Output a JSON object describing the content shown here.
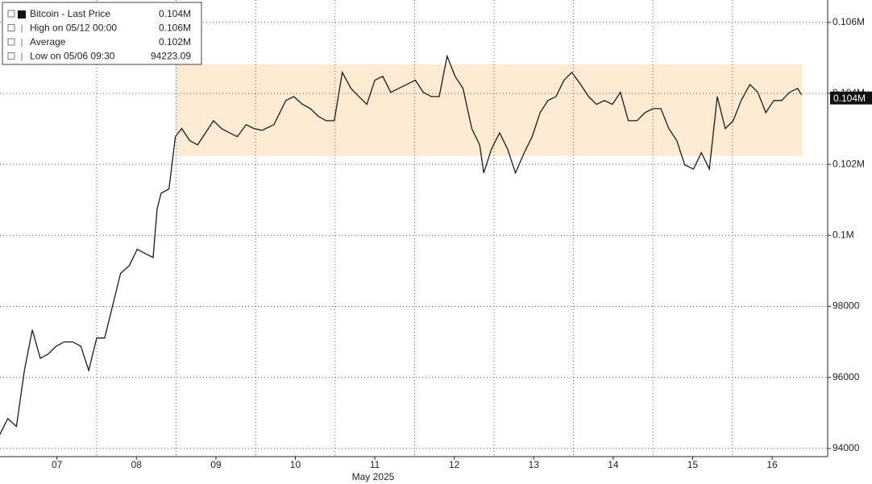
{
  "chart_data": {
    "type": "line",
    "x_axis_label": "May 2025",
    "xlim": [
      6.783,
      17.199
    ],
    "xticks": [
      {
        "value": 7.5,
        "label": "07"
      },
      {
        "value": 8.5,
        "label": "08"
      },
      {
        "value": 9.5,
        "label": "09"
      },
      {
        "value": 10.5,
        "label": "10"
      },
      {
        "value": 11.5,
        "label": "11"
      },
      {
        "value": 12.5,
        "label": "12"
      },
      {
        "value": 13.5,
        "label": "13"
      },
      {
        "value": 14.5,
        "label": "14"
      },
      {
        "value": 15.5,
        "label": "15"
      },
      {
        "value": 16.5,
        "label": "16"
      }
    ],
    "xgrid_lines": [
      8,
      9,
      10,
      11,
      12,
      13,
      14,
      15,
      16
    ],
    "ylim": [
      93770,
      106630
    ],
    "yticks": [
      94000,
      96000,
      98000,
      {
        "value": 100000,
        "label": "0.1M"
      },
      {
        "value": 102000,
        "label": "0.102M"
      },
      {
        "value": 104000,
        "label": "0.104M"
      },
      {
        "value": 106000,
        "label": "0.106M"
      }
    ],
    "grid": true,
    "band": {
      "x": [
        8.99,
        16.88
      ],
      "y": [
        102240,
        104820
      ],
      "color": "#fdebd3"
    },
    "last_price": {
      "value": 103870,
      "label": "0.104M"
    },
    "legend_entries": [
      {
        "name": "Bitcoin - Last Price",
        "value": "0.104M"
      },
      {
        "name": "High on 05/12 00:00",
        "value": "0.106M"
      },
      {
        "name": "Average",
        "value": "0.102M"
      },
      {
        "name": "Low on 05/06 09:30",
        "value": "94223.09"
      }
    ],
    "series": [
      {
        "name": "Bitcoin - Last Price",
        "color": "#1a1a1a",
        "x": [
          6.78,
          6.88,
          6.99,
          7.09,
          7.19,
          7.29,
          7.39,
          7.49,
          7.59,
          7.7,
          7.8,
          7.9,
          8.0,
          8.1,
          8.2,
          8.3,
          8.41,
          8.51,
          8.61,
          8.71,
          8.76,
          8.81,
          8.91,
          8.99,
          9.07,
          9.17,
          9.27,
          9.37,
          9.47,
          9.57,
          9.67,
          9.77,
          9.88,
          9.98,
          10.08,
          10.23,
          10.38,
          10.48,
          10.59,
          10.69,
          10.79,
          10.89,
          10.99,
          11.09,
          11.2,
          11.3,
          11.4,
          11.5,
          11.6,
          11.7,
          11.8,
          11.9,
          12.01,
          12.11,
          12.21,
          12.31,
          12.41,
          12.51,
          12.61,
          12.72,
          12.82,
          12.87,
          12.97,
          13.07,
          13.17,
          13.27,
          13.38,
          13.48,
          13.58,
          13.68,
          13.78,
          13.88,
          13.98,
          14.09,
          14.19,
          14.29,
          14.39,
          14.49,
          14.59,
          14.69,
          14.8,
          14.9,
          15.0,
          15.1,
          15.2,
          15.3,
          15.4,
          15.51,
          15.61,
          15.71,
          15.81,
          15.91,
          16.01,
          16.11,
          16.22,
          16.32,
          16.42,
          16.52,
          16.62,
          16.72,
          16.82,
          16.87
        ],
        "values": [
          94390,
          94840,
          94620,
          96200,
          97340,
          96540,
          96660,
          96880,
          97000,
          97000,
          96880,
          96200,
          97110,
          97110,
          98020,
          98930,
          99150,
          99610,
          99490,
          99380,
          100740,
          101190,
          101310,
          102780,
          103010,
          102670,
          102550,
          102890,
          103230,
          103010,
          102890,
          102780,
          103120,
          103010,
          102960,
          103120,
          103800,
          103910,
          103690,
          103570,
          103350,
          103230,
          103230,
          104590,
          104140,
          103910,
          103690,
          104370,
          104480,
          104030,
          104140,
          104250,
          104370,
          104030,
          103910,
          103910,
          105050,
          104480,
          104140,
          103010,
          102550,
          101760,
          102440,
          102890,
          102440,
          101760,
          102330,
          102780,
          103460,
          103800,
          103910,
          104370,
          104590,
          104250,
          103910,
          103690,
          103800,
          103690,
          104030,
          103230,
          103230,
          103460,
          103570,
          103570,
          103010,
          102670,
          101990,
          101870,
          102330,
          101870,
          103910,
          103010,
          103230,
          103800,
          104250,
          104030,
          103460,
          103800,
          103800,
          104030,
          104140,
          103960
        ]
      }
    ]
  }
}
